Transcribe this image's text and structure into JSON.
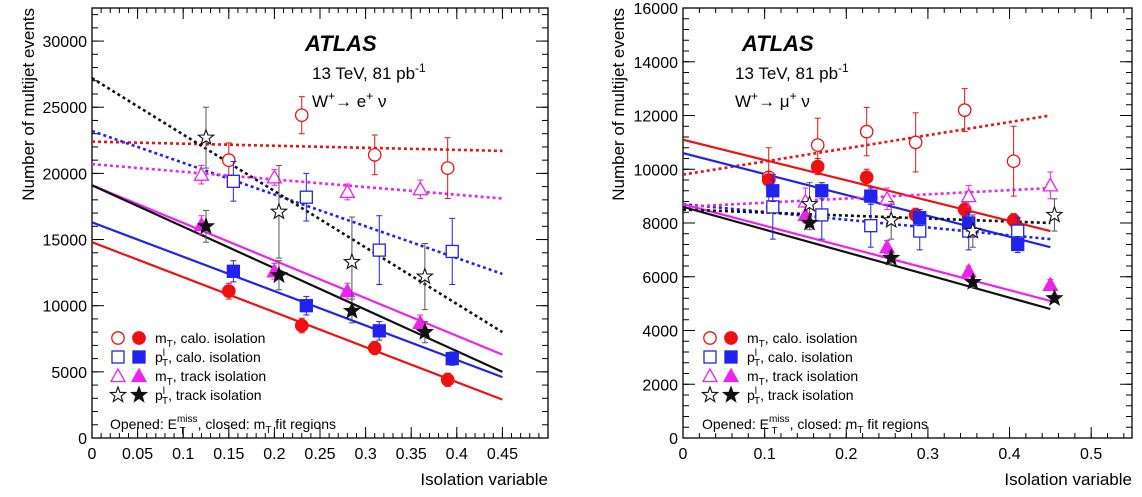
{
  "chart_data": [
    {
      "type": "scatter",
      "atlas_label": "ATLAS",
      "energy_label": "13 TeV, 81 pb",
      "energy_sup": "-1",
      "channel": {
        "base": "W",
        "sup": "+",
        "arrow": "→",
        "lepton": "e",
        "lepton_sup": "+",
        "nu": "ν"
      },
      "xlabel": "Isolation variable",
      "ylabel": "Number of multijet events",
      "xlim": [
        0,
        0.5
      ],
      "ylim": [
        0,
        32500
      ],
      "xticks": [
        0,
        0.05,
        0.1,
        0.15,
        0.2,
        0.25,
        0.3,
        0.35,
        0.4,
        0.45
      ],
      "xticklabels": [
        "0",
        "0.05",
        "0.1",
        "0.15",
        "0.2",
        "0.25",
        "0.3",
        "0.35",
        "0.4",
        "0.45"
      ],
      "yticks": [
        0,
        5000,
        10000,
        15000,
        20000,
        25000,
        30000
      ],
      "yticklabels": [
        "0",
        "5000",
        "10000",
        "15000",
        "20000",
        "25000",
        "30000"
      ],
      "grid": false,
      "legend_position": "bottom-left",
      "legend": [
        {
          "var": "m",
          "var_sub": "T",
          "var_sup": "",
          "text": ", calo. isolation"
        },
        {
          "var": "p",
          "var_sub": "T",
          "var_sup": "l",
          "text": ", calo. isolation"
        },
        {
          "var": "m",
          "var_sub": "T",
          "var_sup": "",
          "text": ", track isolation"
        },
        {
          "var": "p",
          "var_sub": "T",
          "var_sup": "l",
          "text": ", track isolation"
        }
      ],
      "note": {
        "pre": "Opened: E",
        "sub": "T",
        "sup": "miss",
        "mid": ", closed: m",
        "sub2": "T",
        "post": " fit regions"
      },
      "series": [
        {
          "color": "#ee1111",
          "marker": "circle",
          "fill": "open",
          "dashed": true,
          "points": [
            [
              0.15,
              21000,
              1300
            ],
            [
              0.23,
              24400,
              1400
            ],
            [
              0.31,
              21400,
              1500
            ],
            [
              0.39,
              20400,
              2300
            ]
          ],
          "fit": [
            [
              0,
              22400
            ],
            [
              0.45,
              21700
            ]
          ]
        },
        {
          "color": "#ee1111",
          "marker": "circle",
          "fill": "closed",
          "dashed": false,
          "points": [
            [
              0.15,
              11100,
              600
            ],
            [
              0.23,
              8500,
              550
            ],
            [
              0.31,
              6800,
              500
            ],
            [
              0.39,
              4400,
              500
            ]
          ],
          "fit": [
            [
              0,
              14800
            ],
            [
              0.45,
              2900
            ]
          ]
        },
        {
          "color": "#2222ee",
          "marker": "square",
          "fill": "open",
          "dashed": true,
          "points": [
            [
              0.155,
              19400,
              1500
            ],
            [
              0.235,
              18200,
              1800
            ],
            [
              0.315,
              14200,
              2600
            ],
            [
              0.395,
              14100,
              2500
            ]
          ],
          "fit": [
            [
              0,
              23200
            ],
            [
              0.45,
              12400
            ]
          ]
        },
        {
          "color": "#2222ee",
          "marker": "square",
          "fill": "closed",
          "dashed": false,
          "points": [
            [
              0.155,
              12600,
              800
            ],
            [
              0.235,
              10000,
              700
            ],
            [
              0.315,
              8100,
              700
            ],
            [
              0.395,
              6000,
              500
            ]
          ],
          "fit": [
            [
              0,
              16300
            ],
            [
              0.45,
              4600
            ]
          ]
        },
        {
          "color": "#ee22ee",
          "marker": "triangle",
          "fill": "open",
          "dashed": true,
          "points": [
            [
              0.12,
              19900,
              700
            ],
            [
              0.2,
              19700,
              600
            ],
            [
              0.28,
              18600,
              600
            ],
            [
              0.36,
              18800,
              700
            ]
          ],
          "fit": [
            [
              0,
              20700
            ],
            [
              0.45,
              18100
            ]
          ]
        },
        {
          "color": "#ee22ee",
          "marker": "triangle",
          "fill": "closed",
          "dashed": false,
          "points": [
            [
              0.12,
              16100,
              700
            ],
            [
              0.2,
              12600,
              600
            ],
            [
              0.28,
              11100,
              600
            ],
            [
              0.36,
              8700,
              600
            ]
          ],
          "fit": [
            [
              0,
              19100
            ],
            [
              0.45,
              6300
            ]
          ]
        },
        {
          "color": "#111111",
          "marker": "star",
          "fill": "open",
          "dashed": true,
          "points": [
            [
              0.125,
              22700,
              2300
            ],
            [
              0.205,
              17100,
              3500
            ],
            [
              0.285,
              13300,
              3400
            ],
            [
              0.365,
              12200,
              2500
            ]
          ],
          "fit": [
            [
              0,
              27200
            ],
            [
              0.45,
              8000
            ]
          ]
        },
        {
          "color": "#111111",
          "marker": "star",
          "fill": "closed",
          "dashed": false,
          "points": [
            [
              0.125,
              16000,
              1200
            ],
            [
              0.205,
              12300,
              1100
            ],
            [
              0.285,
              9600,
              900
            ],
            [
              0.365,
              8000,
              800
            ]
          ],
          "fit": [
            [
              0,
              19100
            ],
            [
              0.45,
              5000
            ]
          ]
        }
      ]
    },
    {
      "type": "scatter",
      "atlas_label": "ATLAS",
      "energy_label": "13 TeV, 81 pb",
      "energy_sup": "-1",
      "channel": {
        "base": "W",
        "sup": "+",
        "arrow": "→",
        "lepton": "μ",
        "lepton_sup": "+",
        "nu": "ν"
      },
      "xlabel": "Isolation variable",
      "ylabel": "Number of multijet events",
      "xlim": [
        0,
        0.55
      ],
      "ylim": [
        0,
        16000
      ],
      "xticks": [
        0,
        0.1,
        0.2,
        0.3,
        0.4,
        0.5
      ],
      "xticklabels": [
        "0",
        "0.1",
        "0.2",
        "0.3",
        "0.4",
        "0.5"
      ],
      "yticks": [
        0,
        2000,
        4000,
        6000,
        8000,
        10000,
        12000,
        14000,
        16000
      ],
      "yticklabels": [
        "0",
        "2000",
        "4000",
        "6000",
        "8000",
        "10000",
        "12000",
        "14000",
        "16000"
      ],
      "grid": false,
      "legend_position": "bottom-left",
      "legend": [
        {
          "var": "m",
          "var_sub": "T",
          "var_sup": "",
          "text": ", calo. isolation"
        },
        {
          "var": "p",
          "var_sub": "T",
          "var_sup": "l",
          "text": ", calo. isolation"
        },
        {
          "var": "m",
          "var_sub": "T",
          "var_sup": "",
          "text": ", track isolation"
        },
        {
          "var": "p",
          "var_sub": "T",
          "var_sup": "l",
          "text": ", track isolation"
        }
      ],
      "note": {
        "pre": "Opened: E",
        "sub": "T",
        "sup": "miss",
        "mid": ", closed: m",
        "sub2": "T",
        "post": " fit regions"
      },
      "series": [
        {
          "color": "#ee1111",
          "marker": "circle",
          "fill": "open",
          "dashed": true,
          "points": [
            [
              0.105,
              9700,
              1100
            ],
            [
              0.165,
              10900,
              1000
            ],
            [
              0.225,
              11400,
              900
            ],
            [
              0.285,
              11000,
              1100
            ],
            [
              0.345,
              12200,
              800
            ],
            [
              0.405,
              10300,
              1300
            ]
          ],
          "fit": [
            [
              0,
              9800
            ],
            [
              0.45,
              12000
            ]
          ]
        },
        {
          "color": "#ee1111",
          "marker": "circle",
          "fill": "closed",
          "dashed": false,
          "points": [
            [
              0.105,
              9600,
              300
            ],
            [
              0.165,
              10100,
              300
            ],
            [
              0.225,
              9700,
              300
            ],
            [
              0.285,
              8300,
              250
            ],
            [
              0.345,
              8500,
              250
            ],
            [
              0.405,
              8100,
              250
            ]
          ],
          "fit": [
            [
              0,
              11100
            ],
            [
              0.45,
              7700
            ]
          ]
        },
        {
          "color": "#2222ee",
          "marker": "square",
          "fill": "open",
          "dashed": true,
          "points": [
            [
              0.11,
              8600,
              1200
            ],
            [
              0.17,
              8300,
              900
            ],
            [
              0.23,
              7900,
              800
            ],
            [
              0.29,
              7700,
              700
            ],
            [
              0.35,
              7700,
              700
            ],
            [
              0.41,
              7700,
              500
            ]
          ],
          "fit": [
            [
              0,
              8700
            ],
            [
              0.45,
              7400
            ]
          ]
        },
        {
          "color": "#2222ee",
          "marker": "square",
          "fill": "closed",
          "dashed": false,
          "points": [
            [
              0.11,
              9200,
              400
            ],
            [
              0.17,
              9200,
              300
            ],
            [
              0.23,
              9000,
              300
            ],
            [
              0.29,
              8200,
              300
            ],
            [
              0.35,
              8000,
              300
            ],
            [
              0.41,
              7200,
              300
            ]
          ],
          "fit": [
            [
              0,
              10600
            ],
            [
              0.45,
              7100
            ]
          ]
        },
        {
          "color": "#ee22ee",
          "marker": "triangle",
          "fill": "open",
          "dashed": true,
          "points": [
            [
              0.15,
              8800,
              500
            ],
            [
              0.25,
              8900,
              400
            ],
            [
              0.35,
              9000,
              400
            ],
            [
              0.45,
              9400,
              500
            ]
          ],
          "fit": [
            [
              0,
              8600
            ],
            [
              0.45,
              9300
            ]
          ]
        },
        {
          "color": "#ee22ee",
          "marker": "triangle",
          "fill": "closed",
          "dashed": false,
          "points": [
            [
              0.15,
              8300,
              300
            ],
            [
              0.25,
              7100,
              250
            ],
            [
              0.35,
              6200,
              200
            ],
            [
              0.45,
              5700,
              200
            ]
          ],
          "fit": [
            [
              0,
              8700
            ],
            [
              0.45,
              5100
            ]
          ]
        },
        {
          "color": "#111111",
          "marker": "star",
          "fill": "open",
          "dashed": true,
          "points": [
            [
              0.155,
              8700,
              800
            ],
            [
              0.255,
              8100,
              700
            ],
            [
              0.355,
              7700,
              600
            ],
            [
              0.455,
              8300,
              600
            ]
          ],
          "fit": [
            [
              0,
              8500
            ],
            [
              0.45,
              8000
            ]
          ]
        },
        {
          "color": "#111111",
          "marker": "star",
          "fill": "closed",
          "dashed": false,
          "points": [
            [
              0.155,
              8000,
              250
            ],
            [
              0.255,
              6700,
              250
            ],
            [
              0.355,
              5800,
              200
            ],
            [
              0.455,
              5200,
              150
            ]
          ],
          "fit": [
            [
              0,
              8600
            ],
            [
              0.45,
              4800
            ]
          ]
        }
      ]
    }
  ]
}
